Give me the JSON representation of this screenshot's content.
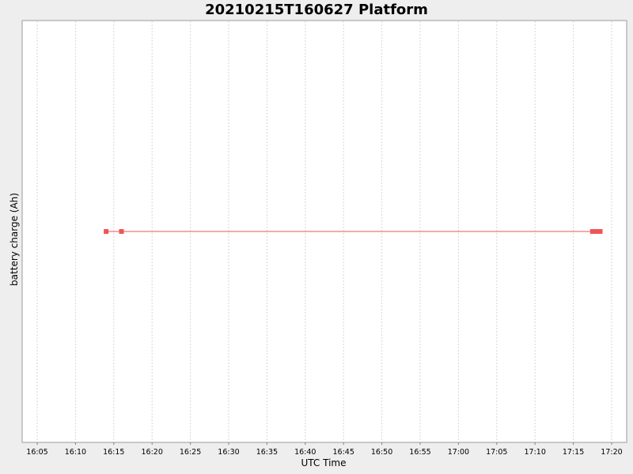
{
  "chart_data": {
    "type": "line",
    "title": "20210215T160627 Platform",
    "xlabel": "UTC Time",
    "ylabel": "battery charge (Ah)",
    "x_ticks": [
      "16:05",
      "16:10",
      "16:15",
      "16:20",
      "16:25",
      "16:30",
      "16:35",
      "16:40",
      "16:45",
      "16:50",
      "16:55",
      "17:00",
      "17:05",
      "17:10",
      "17:15",
      "17:20"
    ],
    "xlim": [
      "16:03",
      "17:22"
    ],
    "grid": true,
    "series": [
      {
        "color": "#ee5555",
        "points": [
          {
            "x": "16:14",
            "y": 0
          },
          {
            "x": "16:16",
            "y": 0
          },
          {
            "x": "17:17:30",
            "y": 0
          },
          {
            "x": "17:18",
            "y": 0
          },
          {
            "x": "17:18:30",
            "y": 0
          }
        ]
      }
    ]
  }
}
